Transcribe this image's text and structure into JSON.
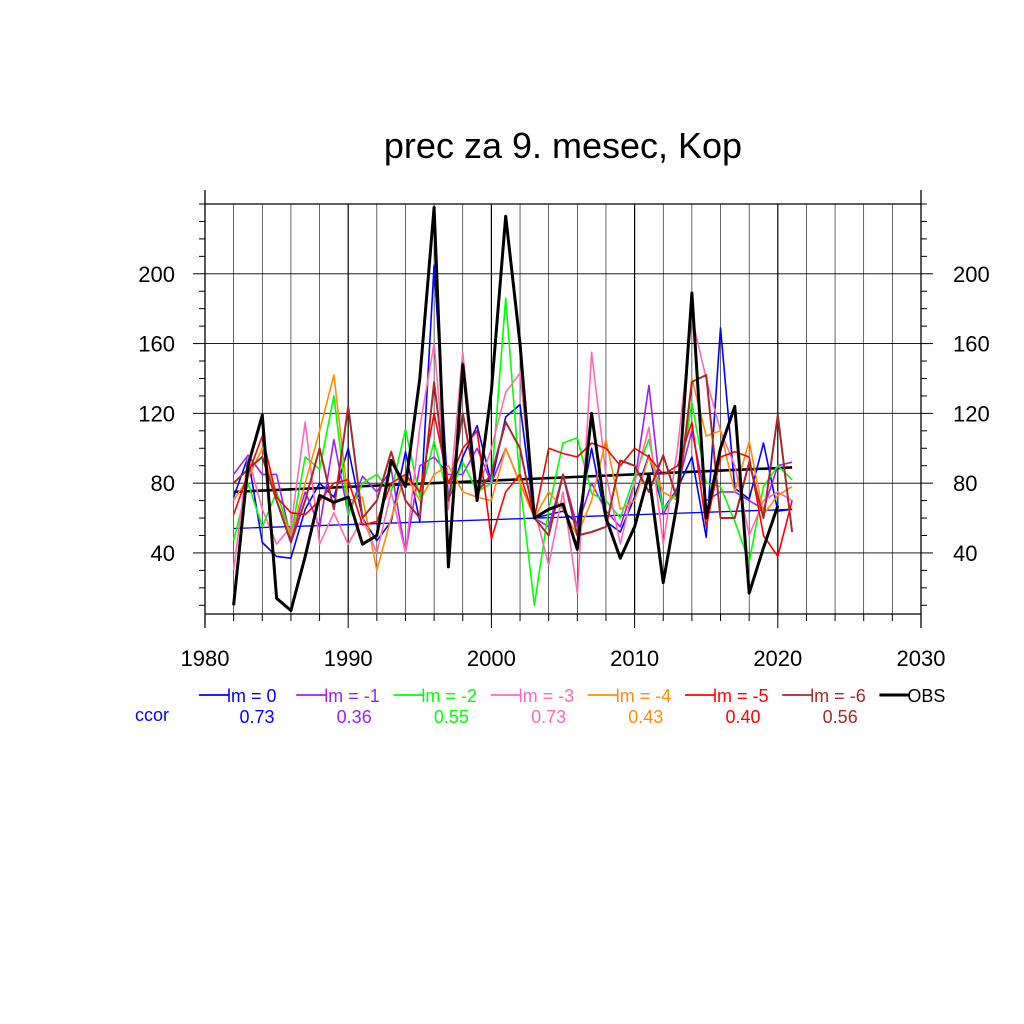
{
  "chart_data": {
    "type": "line",
    "title": "prec za 9. mesec, Kop",
    "xlabel": "",
    "ylabel": "",
    "xlim": [
      1980,
      2030
    ],
    "ylim": [
      5,
      240
    ],
    "xticks": [
      1980,
      1990,
      2000,
      2010,
      2020,
      2030
    ],
    "yticks": [
      40,
      80,
      120,
      160,
      200
    ],
    "grid": true,
    "legend_position": "bottom",
    "ccor_label": "ccor",
    "x": [
      1982,
      1983,
      1984,
      1985,
      1986,
      1987,
      1988,
      1989,
      1990,
      1991,
      1992,
      1993,
      1994,
      1995,
      1996,
      1997,
      1998,
      1999,
      2000,
      2001,
      2002,
      2003,
      2004,
      2005,
      2006,
      2007,
      2008,
      2009,
      2010,
      2011,
      2012,
      2013,
      2014,
      2015,
      2016,
      2017,
      2018,
      2019,
      2020,
      2021
    ],
    "series": [
      {
        "name": "lm = 0",
        "color": "#0000ff",
        "ccor": "0.73",
        "width": 1.6,
        "values": [
          72,
          95,
          46,
          38,
          37,
          65,
          80,
          72,
          100,
          60,
          47,
          58,
          98,
          58,
          205,
          70,
          95,
          113,
          80,
          118,
          125,
          60,
          62,
          64,
          57,
          100,
          58,
          52,
          72,
          96,
          65,
          77,
          95,
          49,
          169,
          77,
          71,
          103,
          64,
          65
        ],
        "trend": [
          54,
          65
        ]
      },
      {
        "name": "lm = -1",
        "color": "#a020f0",
        "ccor": "0.36",
        "width": 1.6,
        "values": [
          85,
          96,
          85,
          85,
          48,
          75,
          55,
          105,
          62,
          84,
          75,
          88,
          40,
          90,
          95,
          85,
          85,
          100,
          80,
          100,
          80,
          60,
          55,
          85,
          55,
          80,
          64,
          55,
          80,
          136,
          62,
          78,
          110,
          70,
          75,
          75,
          70,
          65,
          90,
          92
        ]
      },
      {
        "name": "lm = -2",
        "color": "#00ff00",
        "ccor": "0.55",
        "width": 1.6,
        "values": [
          47,
          80,
          55,
          75,
          50,
          95,
          88,
          130,
          62,
          80,
          85,
          75,
          111,
          72,
          104,
          72,
          92,
          75,
          80,
          186,
          80,
          10,
          65,
          103,
          106,
          74,
          70,
          60,
          84,
          105,
          65,
          75,
          126,
          80,
          78,
          58,
          35,
          78,
          90,
          82
        ]
      },
      {
        "name": "lm = -3",
        "color": "#ff69b4",
        "ccor": "0.73",
        "width": 1.6,
        "values": [
          30,
          95,
          65,
          45,
          55,
          115,
          45,
          63,
          45,
          60,
          40,
          75,
          40,
          112,
          160,
          65,
          155,
          75,
          100,
          132,
          143,
          65,
          33,
          75,
          17,
          155,
          85,
          45,
          80,
          112,
          45,
          100,
          175,
          140,
          110,
          90,
          50,
          70,
          75,
          70
        ]
      },
      {
        "name": "lm = -4",
        "color": "#ff8c00",
        "ccor": "0.43",
        "width": 1.6,
        "values": [
          70,
          83,
          100,
          70,
          50,
          80,
          110,
          142,
          70,
          72,
          30,
          60,
          85,
          70,
          85,
          90,
          75,
          72,
          70,
          100,
          80,
          60,
          75,
          65,
          50,
          70,
          105,
          65,
          70,
          95,
          75,
          70,
          140,
          107,
          110,
          75,
          104,
          62,
          73,
          78
        ]
      },
      {
        "name": "lm = -5",
        "color": "#ff0000",
        "ccor": "0.40",
        "width": 1.6,
        "values": [
          62,
          85,
          107,
          72,
          63,
          62,
          70,
          80,
          82,
          56,
          58,
          80,
          85,
          75,
          120,
          80,
          100,
          110,
          48,
          75,
          85,
          60,
          100,
          97,
          95,
          103,
          100,
          90,
          100,
          95,
          85,
          90,
          115,
          55,
          95,
          98,
          95,
          50,
          38,
          70
        ]
      },
      {
        "name": "lm = -6",
        "color": "#a52a2a",
        "ccor": "0.56",
        "width": 2,
        "values": [
          80,
          88,
          95,
          70,
          46,
          70,
          100,
          65,
          124,
          60,
          70,
          98,
          70,
          60,
          138,
          70,
          120,
          75,
          85,
          115,
          100,
          60,
          50,
          85,
          50,
          52,
          55,
          93,
          90,
          75,
          96,
          70,
          138,
          142,
          60,
          60,
          92,
          60,
          119,
          52
        ]
      },
      {
        "name": "OBS",
        "color": "#000000",
        "ccor": "",
        "width": 3,
        "values": [
          10,
          90,
          119,
          14,
          7,
          38,
          73,
          69,
          72,
          45,
          50,
          93,
          78,
          140,
          238,
          32,
          148,
          70,
          133,
          233,
          160,
          60,
          65,
          68,
          42,
          120,
          60,
          37,
          55,
          85,
          23,
          70,
          189,
          60,
          100,
          124,
          17,
          43,
          67,
          null
        ],
        "trend": [
          75,
          89
        ]
      }
    ]
  }
}
